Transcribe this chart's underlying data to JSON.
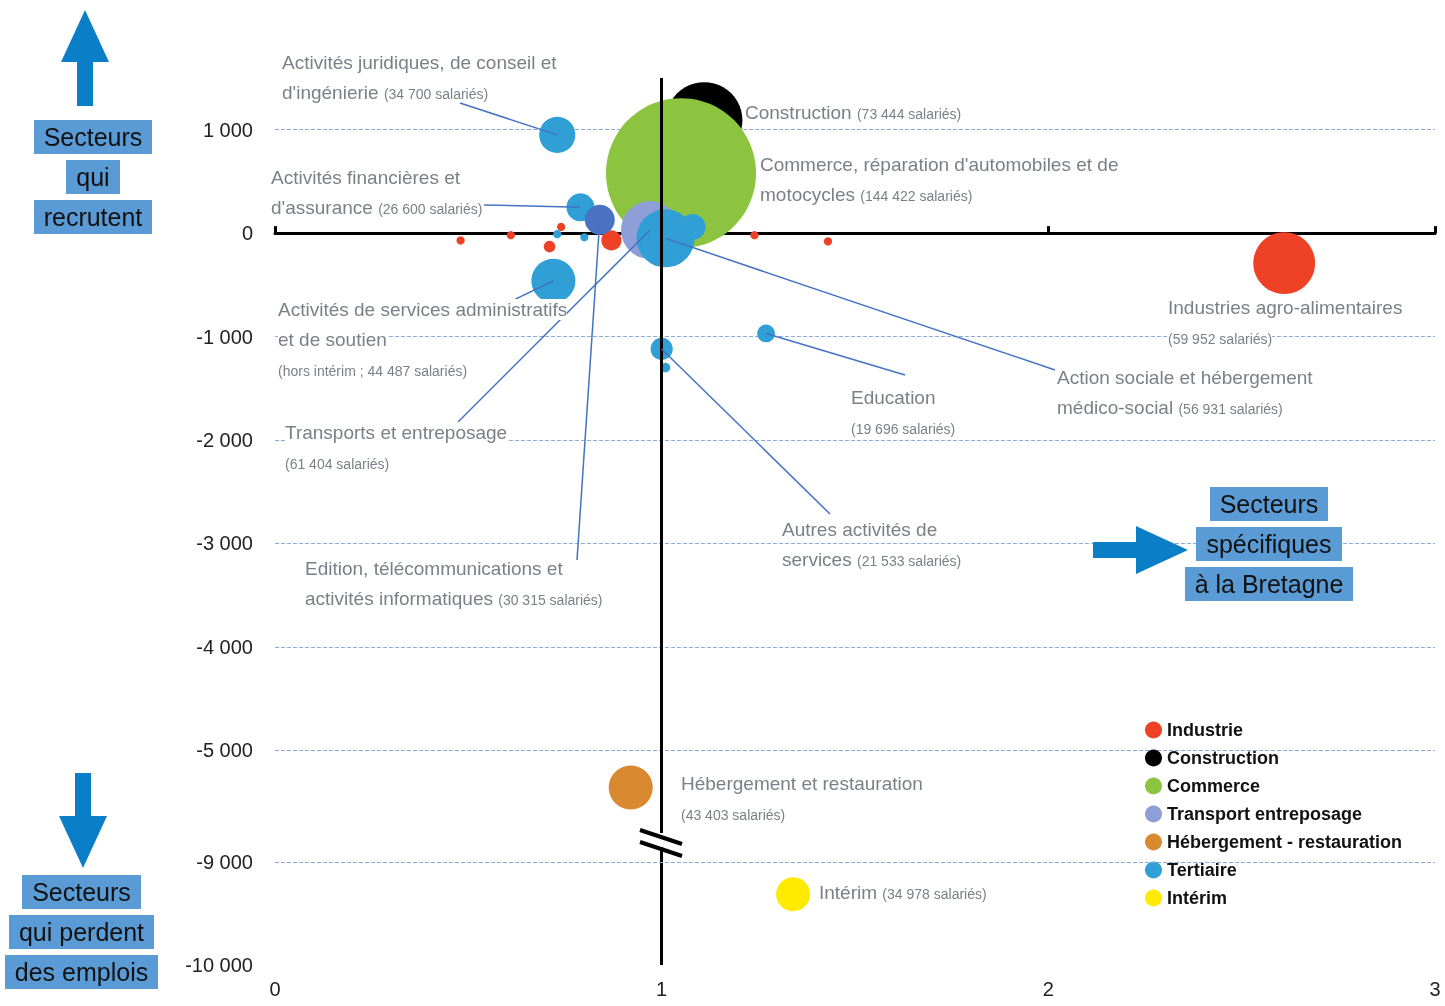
{
  "chart_data": [
    {
      "type": "bubble",
      "xlim": [
        0,
        3
      ],
      "xticks": [
        0,
        1,
        2,
        3
      ],
      "ylim": [
        -5800,
        1500
      ],
      "yticks": [
        {
          "value": 1000,
          "label": "1 000"
        },
        0,
        {
          "value": -1000,
          "label": "-1 000"
        },
        {
          "value": -2000,
          "label": "-2 000"
        },
        {
          "value": -3000,
          "label": "-3 000"
        },
        {
          "value": -4000,
          "label": "-4 000"
        },
        {
          "value": -5000,
          "label": "-5 000"
        }
      ],
      "tick_labels": "y",
      "grid": "y",
      "legend": "bottom right",
      "marker": "circle",
      "ref_lines": [
        {
          "axis": "x",
          "value": 1,
          "color": "#000000"
        }
      ],
      "series": [
        {
          "name": "Industrie",
          "color": "#ef4125",
          "x": [
            2.61,
            0.87,
            0.71,
            0.74,
            1.24,
            1.43,
            0.48,
            0.61
          ],
          "values": [
            -290,
            -70,
            -130,
            60,
            -20,
            -80,
            -70,
            -20
          ],
          "sizes": [
            0.17,
            0.018,
            0.006,
            0.003,
            0.003,
            0.003,
            0.003,
            0.003
          ]
        },
        {
          "name": "Construction",
          "color": "#000000",
          "x": [
            1.11
          ],
          "values": [
            1090
          ],
          "sizes": [
            0.26
          ]
        },
        {
          "name": "Commerce",
          "color": "#8cc43f",
          "x": [
            1.05
          ],
          "values": [
            580
          ],
          "sizes": [
            1
          ]
        },
        {
          "name": "Transport entreposage",
          "color": "#8e9fd8",
          "x": [
            0.97
          ],
          "values": [
            30
          ],
          "sizes": [
            0.15
          ]
        },
        {
          "name": "Hébergement - restauration",
          "color": "#d98a30",
          "x": [
            0.92
          ],
          "values": [
            -5360
          ],
          "sizes": [
            0.086
          ]
        },
        {
          "name": "Tertiaire",
          "color": "#2f9fd6",
          "x": [
            0.73,
            0.79,
            0.84,
            1.01,
            1.08,
            0.73,
            0.8,
            0.72,
            1.27,
            1.0,
            1.01
          ],
          "values": [
            950,
            250,
            130,
            -50,
            60,
            -10,
            -40,
            -460,
            -970,
            -1120,
            -1300
          ],
          "sizes": [
            0.058,
            0.035,
            0.04,
            0.15,
            0.03,
            0.003,
            0.003,
            0.086,
            0.014,
            0.022,
            0.004
          ],
          "colors": [
            "#2f9fd6",
            "#2f9fd6",
            "#4a72c2",
            "#2f9fd6",
            "#2f9fd6",
            "#2f9fd6",
            "#2f9fd6",
            "#2f9fd6",
            "#2f9fd6",
            "#2f9fd6",
            "#2f9fd6"
          ]
        }
      ],
      "annotations": [
        {
          "text": "Activités juridiques, de conseil et d'ingénierie (34 700 salariés)",
          "x": 0.73,
          "y": 950
        },
        "Construction (73 444 salariés)",
        "Commerce, réparation d'automobiles et de motocycles (144 422 salariés)",
        {
          "text": "Activités financières et d'assurance (26 600 salariés)",
          "x": 0.79,
          "y": 250
        },
        {
          "text": "Activités de services administratifs et de soutien (hors intérim ; 44 487 salariés)",
          "x": 0.72,
          "y": -460
        },
        {
          "text": "Transports et entreposage (61 404 salariés)",
          "x": 0.97,
          "y": 30
        },
        {
          "text": "Edition, télécommunications et activités informatiques (30 315 salariés)",
          "x": 0.84,
          "y": 130
        },
        {
          "text": "Education (19 696 salariés)",
          "x": 1.27,
          "y": -970
        },
        {
          "text": "Action sociale et hébergement médico-social (56 931 salariés)",
          "x": 1.01,
          "y": -50
        },
        {
          "text": "Autres activités de services (21 533 salariés)",
          "x": 1.0,
          "y": -1120
        },
        "Industries agro-alimentaires (59 952 salariés)",
        "Hébergement et restauration (43 403 salariés)",
        "Secteurs qui recrutent",
        "Secteurs spécifiques à la Bretagne"
      ]
    },
    {
      "type": "bubble",
      "xlim": [
        0,
        3
      ],
      "xticks": [
        0,
        1,
        2,
        3
      ],
      "ylim": [
        -10000,
        -8850
      ],
      "yticks": [
        {
          "value": -9000,
          "label": "-9 000"
        },
        {
          "value": -10000,
          "label": "-10 000"
        }
      ],
      "legend": "right",
      "marker": "circle",
      "ref_lines": [
        {
          "axis": "x",
          "value": 1,
          "color": "#000000"
        },
        {
          "axis": "y",
          "value": -9000,
          "color": "#8eaadb",
          "line_style": "dashed"
        }
      ],
      "series": [
        {
          "name": "Intérim",
          "color": "#ffea00",
          "x": [
            1.34
          ],
          "values": [
            -9310
          ],
          "sizes": [
            1
          ]
        }
      ],
      "annotations": [
        "Intérim (34 978 salariés)",
        "Secteurs qui perdent des emplois"
      ]
    }
  ]
}
